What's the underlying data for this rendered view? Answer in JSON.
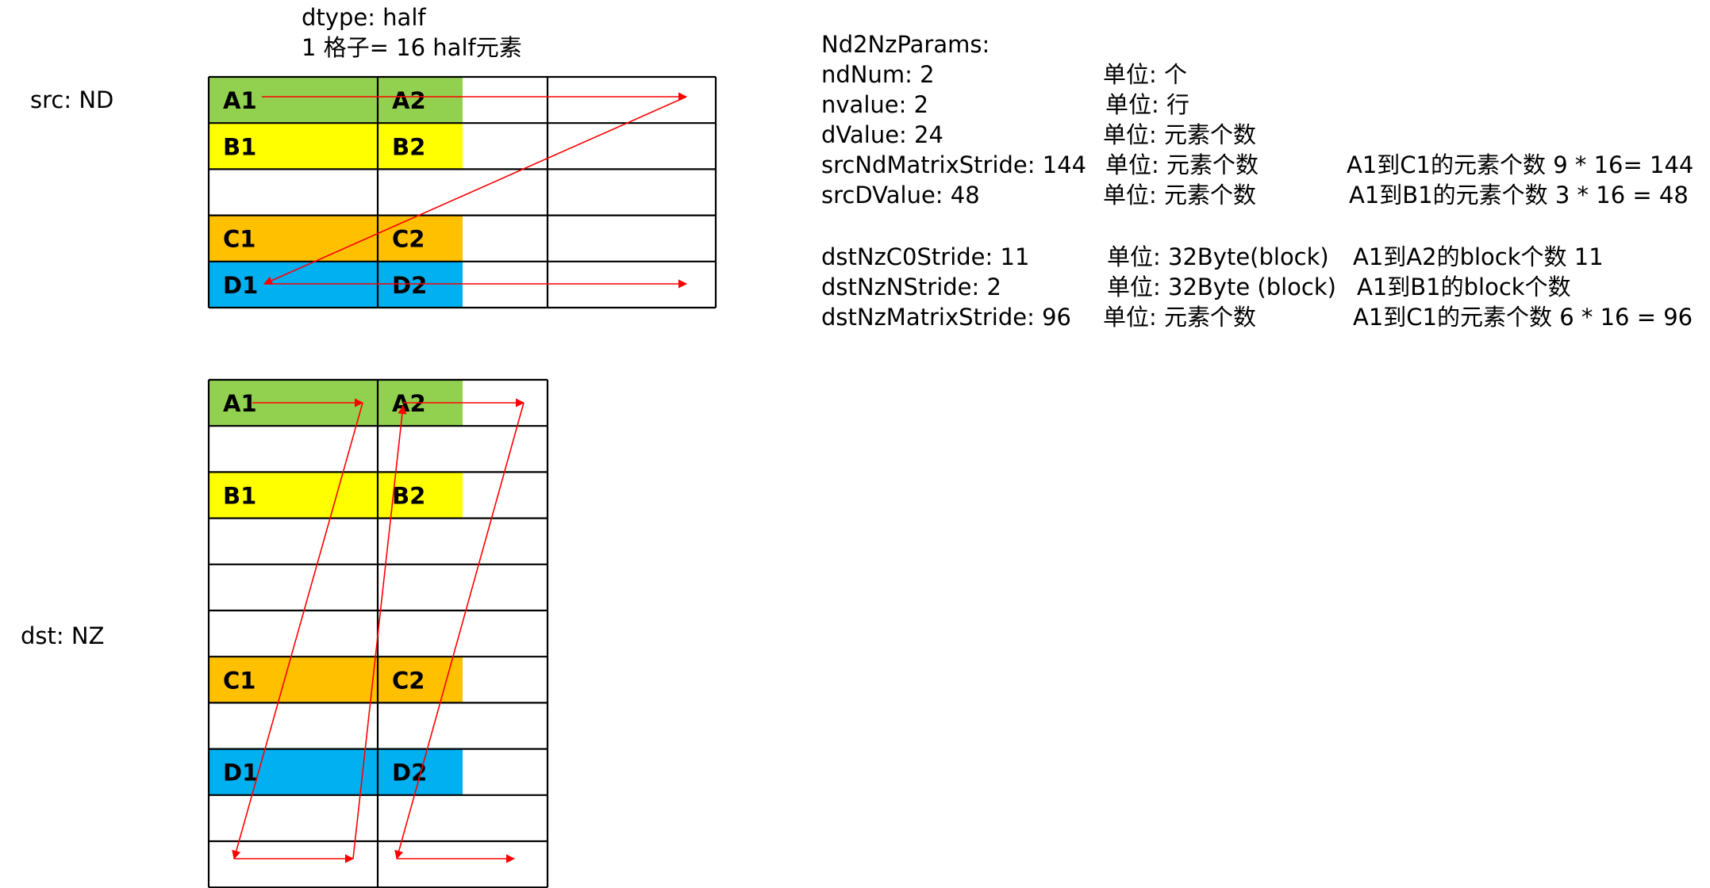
{
  "header": {
    "dtype_line": "dtype: half",
    "cell_line": "1 格子= 16 half元素"
  },
  "src": {
    "label": "src: ND",
    "rows": [
      {
        "cells": [
          {
            "label": "A1",
            "color": "#92d050"
          },
          {
            "label": "A2",
            "color": "#92d050"
          }
        ]
      },
      {
        "cells": [
          {
            "label": "B1",
            "color": "#ffff00"
          },
          {
            "label": "B2",
            "color": "#ffff00"
          }
        ]
      },
      {
        "cells": [
          {
            "label": "",
            "color": ""
          },
          {
            "label": "",
            "color": ""
          }
        ]
      },
      {
        "cells": [
          {
            "label": "C1",
            "color": "#ffc000"
          },
          {
            "label": "C2",
            "color": "#ffc000"
          }
        ]
      },
      {
        "cells": [
          {
            "label": "D1",
            "color": "#00b0f0"
          },
          {
            "label": "D2",
            "color": "#00b0f0"
          }
        ]
      }
    ]
  },
  "dst": {
    "label": "dst:  NZ",
    "rows": [
      {
        "cells": [
          {
            "label": "A1",
            "color": "#92d050"
          },
          {
            "label": "A2",
            "color": "#92d050"
          }
        ]
      },
      {
        "cells": [
          {
            "label": "",
            "color": ""
          },
          {
            "label": "",
            "color": ""
          }
        ]
      },
      {
        "cells": [
          {
            "label": "B1",
            "color": "#ffff00"
          },
          {
            "label": "B2",
            "color": "#ffff00"
          }
        ]
      },
      {
        "cells": [
          {
            "label": "",
            "color": ""
          },
          {
            "label": "",
            "color": ""
          }
        ]
      },
      {
        "cells": [
          {
            "label": "",
            "color": ""
          },
          {
            "label": "",
            "color": ""
          }
        ]
      },
      {
        "cells": [
          {
            "label": "",
            "color": ""
          },
          {
            "label": "",
            "color": ""
          }
        ]
      },
      {
        "cells": [
          {
            "label": "C1",
            "color": "#ffc000"
          },
          {
            "label": "C2",
            "color": "#ffc000"
          }
        ]
      },
      {
        "cells": [
          {
            "label": "",
            "color": ""
          },
          {
            "label": "",
            "color": ""
          }
        ]
      },
      {
        "cells": [
          {
            "label": "D1",
            "color": "#00b0f0"
          },
          {
            "label": "D2",
            "color": "#00b0f0"
          }
        ]
      },
      {
        "cells": [
          {
            "label": "",
            "color": ""
          },
          {
            "label": "",
            "color": ""
          }
        ]
      },
      {
        "cells": [
          {
            "label": "",
            "color": ""
          },
          {
            "label": "",
            "color": ""
          }
        ]
      }
    ]
  },
  "params": {
    "title": "Nd2NzParams:",
    "rows": [
      {
        "name": "ndNum: 2",
        "unit": "单位: 个",
        "note": ""
      },
      {
        "name": "nvalue: 2",
        "unit": "单位:  行",
        "note": ""
      },
      {
        "name": "dValue: 24",
        "unit": "单位: 元素个数",
        "note": ""
      },
      {
        "name": "srcNdMatrixStride: 144",
        "unit": "单位: 元素个数",
        "note": "A1到C1的元素个数  9 * 16= 144"
      },
      {
        "name": "srcDValue: 48",
        "unit": "单位: 元素个数",
        "note": "A1到B1的元素个数  3 * 16 = 48"
      },
      {
        "name": "dstNzC0Stride: 11",
        "unit": "单位: 32Byte(block)",
        "note": "A1到A2的block个数  11"
      },
      {
        "name": "dstNzNStride: 2",
        "unit": "单位: 32Byte (block)",
        "note": "A1到B1的block个数"
      },
      {
        "name": "dstNzMatrixStride: 96",
        "unit": "单位: 元素个数",
        "note": "A1到C1的元素个数  6 * 16 = 96"
      }
    ]
  },
  "colors": {
    "arrow": "#ff0000",
    "grid": "#000000"
  }
}
